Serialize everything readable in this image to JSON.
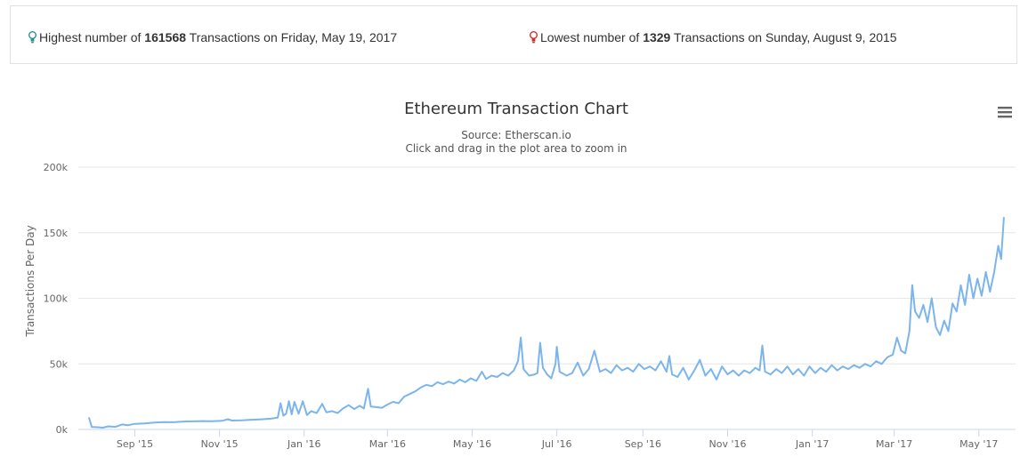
{
  "stats": {
    "highest": {
      "prefix": "Highest number of",
      "value": "161568",
      "suffix": "Transactions on Friday, May 19, 2017",
      "icon": "lightbulb-teal-icon",
      "icon_color": "#2a8f8f"
    },
    "lowest": {
      "prefix": "Lowest number of",
      "value": "1329",
      "suffix": "Transactions on Sunday, August 9, 2015",
      "icon": "lightbulb-red-icon",
      "icon_color": "#c9302c"
    }
  },
  "chart_menu_icon": "hamburger-menu-icon",
  "chart_data": {
    "type": "line",
    "title": "Ethereum Transaction Chart",
    "subtitle_source": "Source: Etherscan.io",
    "subtitle_hint": "Click and drag in the plot area to zoom in",
    "ylabel": "Transactions Per Day",
    "xlabel": "",
    "ylim": [
      0,
      200000
    ],
    "xlim": [
      "2015-07-30",
      "2017-05-21"
    ],
    "yticks": [
      {
        "value": 0,
        "label": "0k"
      },
      {
        "value": 50000,
        "label": "50k"
      },
      {
        "value": 100000,
        "label": "100k"
      },
      {
        "value": 150000,
        "label": "150k"
      },
      {
        "value": 200000,
        "label": "200k"
      }
    ],
    "xticks": [
      {
        "date": "2015-09-01",
        "label": "Sep '15"
      },
      {
        "date": "2015-11-01",
        "label": "Nov '15"
      },
      {
        "date": "2016-01-01",
        "label": "Jan '16"
      },
      {
        "date": "2016-03-01",
        "label": "Mar '16"
      },
      {
        "date": "2016-05-01",
        "label": "May '16"
      },
      {
        "date": "2016-07-01",
        "label": "Jul '16"
      },
      {
        "date": "2016-09-01",
        "label": "Sep '16"
      },
      {
        "date": "2016-11-01",
        "label": "Nov '16"
      },
      {
        "date": "2017-01-01",
        "label": "Jan '17"
      },
      {
        "date": "2017-03-01",
        "label": "Mar '17"
      },
      {
        "date": "2017-05-01",
        "label": "May '17"
      }
    ],
    "grid": true,
    "line_color": "#7cb5ec",
    "series": [
      {
        "points": [
          [
            "2015-07-30",
            8900
          ],
          [
            "2015-08-01",
            1800
          ],
          [
            "2015-08-05",
            1700
          ],
          [
            "2015-08-09",
            1329
          ],
          [
            "2015-08-13",
            2400
          ],
          [
            "2015-08-18",
            2000
          ],
          [
            "2015-08-23",
            3800
          ],
          [
            "2015-08-27",
            3200
          ],
          [
            "2015-09-01",
            4300
          ],
          [
            "2015-09-08",
            4600
          ],
          [
            "2015-09-15",
            5200
          ],
          [
            "2015-09-22",
            5600
          ],
          [
            "2015-09-29",
            5500
          ],
          [
            "2015-10-06",
            6000
          ],
          [
            "2015-10-13",
            6200
          ],
          [
            "2015-10-20",
            6400
          ],
          [
            "2015-10-27",
            6300
          ],
          [
            "2015-11-03",
            6600
          ],
          [
            "2015-11-07",
            7800
          ],
          [
            "2015-11-10",
            6800
          ],
          [
            "2015-11-17",
            7000
          ],
          [
            "2015-11-24",
            7400
          ],
          [
            "2015-12-01",
            7700
          ],
          [
            "2015-12-08",
            8200
          ],
          [
            "2015-12-13",
            9000
          ],
          [
            "2015-12-15",
            20000
          ],
          [
            "2015-12-17",
            10500
          ],
          [
            "2015-12-19",
            12000
          ],
          [
            "2015-12-21",
            21500
          ],
          [
            "2015-12-23",
            11500
          ],
          [
            "2015-12-25",
            21000
          ],
          [
            "2015-12-28",
            12000
          ],
          [
            "2015-12-31",
            21500
          ],
          [
            "2016-01-03",
            11000
          ],
          [
            "2016-01-06",
            14000
          ],
          [
            "2016-01-10",
            12500
          ],
          [
            "2016-01-14",
            19500
          ],
          [
            "2016-01-17",
            13000
          ],
          [
            "2016-01-21",
            14000
          ],
          [
            "2016-01-25",
            12500
          ],
          [
            "2016-01-29",
            16000
          ],
          [
            "2016-02-02",
            18500
          ],
          [
            "2016-02-06",
            15500
          ],
          [
            "2016-02-10",
            18000
          ],
          [
            "2016-02-13",
            16000
          ],
          [
            "2016-02-16",
            31000
          ],
          [
            "2016-02-18",
            17500
          ],
          [
            "2016-02-22",
            17000
          ],
          [
            "2016-02-26",
            16500
          ],
          [
            "2016-03-01",
            19000
          ],
          [
            "2016-03-05",
            21000
          ],
          [
            "2016-03-09",
            20000
          ],
          [
            "2016-03-13",
            25000
          ],
          [
            "2016-03-17",
            27000
          ],
          [
            "2016-03-21",
            29000
          ],
          [
            "2016-03-25",
            32000
          ],
          [
            "2016-03-29",
            34000
          ],
          [
            "2016-04-02",
            33000
          ],
          [
            "2016-04-06",
            36000
          ],
          [
            "2016-04-10",
            34500
          ],
          [
            "2016-04-14",
            36500
          ],
          [
            "2016-04-18",
            35000
          ],
          [
            "2016-04-22",
            38000
          ],
          [
            "2016-04-26",
            36000
          ],
          [
            "2016-04-30",
            39000
          ],
          [
            "2016-05-04",
            37000
          ],
          [
            "2016-05-08",
            44000
          ],
          [
            "2016-05-11",
            38500
          ],
          [
            "2016-05-15",
            41000
          ],
          [
            "2016-05-19",
            40000
          ],
          [
            "2016-05-23",
            43000
          ],
          [
            "2016-05-27",
            41000
          ],
          [
            "2016-05-31",
            45000
          ],
          [
            "2016-06-03",
            52000
          ],
          [
            "2016-06-05",
            70000
          ],
          [
            "2016-06-07",
            46000
          ],
          [
            "2016-06-11",
            41000
          ],
          [
            "2016-06-15",
            42000
          ],
          [
            "2016-06-17",
            43000
          ],
          [
            "2016-06-19",
            66000
          ],
          [
            "2016-06-21",
            47000
          ],
          [
            "2016-06-24",
            42000
          ],
          [
            "2016-06-27",
            39000
          ],
          [
            "2016-06-30",
            50000
          ],
          [
            "2016-07-01",
            63000
          ],
          [
            "2016-07-03",
            44000
          ],
          [
            "2016-07-08",
            41000
          ],
          [
            "2016-07-12",
            43000
          ],
          [
            "2016-07-16",
            51000
          ],
          [
            "2016-07-20",
            41000
          ],
          [
            "2016-07-24",
            46000
          ],
          [
            "2016-07-28",
            60000
          ],
          [
            "2016-08-01",
            44000
          ],
          [
            "2016-08-05",
            46000
          ],
          [
            "2016-08-09",
            43000
          ],
          [
            "2016-08-13",
            49000
          ],
          [
            "2016-08-17",
            45000
          ],
          [
            "2016-08-21",
            47000
          ],
          [
            "2016-08-25",
            44000
          ],
          [
            "2016-08-29",
            50000
          ],
          [
            "2016-09-02",
            46000
          ],
          [
            "2016-09-06",
            48000
          ],
          [
            "2016-09-10",
            45000
          ],
          [
            "2016-09-14",
            52000
          ],
          [
            "2016-09-18",
            44000
          ],
          [
            "2016-09-20",
            56000
          ],
          [
            "2016-09-22",
            42000
          ],
          [
            "2016-09-26",
            40000
          ],
          [
            "2016-09-30",
            47000
          ],
          [
            "2016-10-04",
            38000
          ],
          [
            "2016-10-08",
            45000
          ],
          [
            "2016-10-12",
            53000
          ],
          [
            "2016-10-16",
            41000
          ],
          [
            "2016-10-20",
            46000
          ],
          [
            "2016-10-24",
            38000
          ],
          [
            "2016-10-28",
            48000
          ],
          [
            "2016-11-01",
            42000
          ],
          [
            "2016-11-05",
            45000
          ],
          [
            "2016-11-09",
            41000
          ],
          [
            "2016-11-13",
            45000
          ],
          [
            "2016-11-17",
            43000
          ],
          [
            "2016-11-21",
            47000
          ],
          [
            "2016-11-24",
            45000
          ],
          [
            "2016-11-26",
            64000
          ],
          [
            "2016-11-28",
            44000
          ],
          [
            "2016-12-02",
            42000
          ],
          [
            "2016-12-06",
            46000
          ],
          [
            "2016-12-10",
            43000
          ],
          [
            "2016-12-14",
            48000
          ],
          [
            "2016-12-18",
            42000
          ],
          [
            "2016-12-22",
            46000
          ],
          [
            "2016-12-26",
            41000
          ],
          [
            "2016-12-30",
            48000
          ],
          [
            "2017-01-03",
            43000
          ],
          [
            "2017-01-07",
            47000
          ],
          [
            "2017-01-11",
            44000
          ],
          [
            "2017-01-15",
            49000
          ],
          [
            "2017-01-19",
            45000
          ],
          [
            "2017-01-23",
            48000
          ],
          [
            "2017-01-27",
            46000
          ],
          [
            "2017-01-31",
            49000
          ],
          [
            "2017-02-04",
            47000
          ],
          [
            "2017-02-08",
            50000
          ],
          [
            "2017-02-12",
            48000
          ],
          [
            "2017-02-16",
            52000
          ],
          [
            "2017-02-20",
            50000
          ],
          [
            "2017-02-24",
            55000
          ],
          [
            "2017-02-28",
            57000
          ],
          [
            "2017-03-03",
            70000
          ],
          [
            "2017-03-06",
            60000
          ],
          [
            "2017-03-09",
            58000
          ],
          [
            "2017-03-12",
            75000
          ],
          [
            "2017-03-14",
            110000
          ],
          [
            "2017-03-16",
            90000
          ],
          [
            "2017-03-19",
            85000
          ],
          [
            "2017-03-22",
            95000
          ],
          [
            "2017-03-25",
            82000
          ],
          [
            "2017-03-28",
            100000
          ],
          [
            "2017-03-31",
            78000
          ],
          [
            "2017-04-03",
            72000
          ],
          [
            "2017-04-06",
            83000
          ],
          [
            "2017-04-09",
            75000
          ],
          [
            "2017-04-12",
            96000
          ],
          [
            "2017-04-15",
            90000
          ],
          [
            "2017-04-18",
            110000
          ],
          [
            "2017-04-21",
            95000
          ],
          [
            "2017-04-24",
            118000
          ],
          [
            "2017-04-27",
            100000
          ],
          [
            "2017-04-30",
            115000
          ],
          [
            "2017-05-03",
            102000
          ],
          [
            "2017-05-06",
            120000
          ],
          [
            "2017-05-09",
            105000
          ],
          [
            "2017-05-12",
            120000
          ],
          [
            "2017-05-15",
            140000
          ],
          [
            "2017-05-17",
            130000
          ],
          [
            "2017-05-19",
            161568
          ]
        ]
      }
    ]
  }
}
